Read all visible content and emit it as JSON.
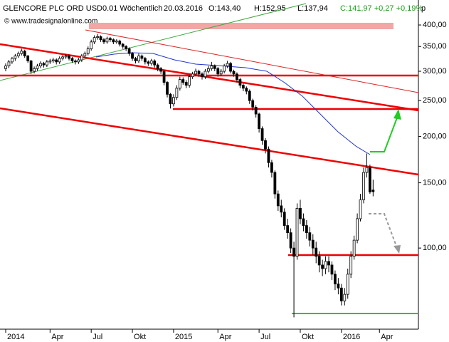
{
  "chart_data": {
    "type": "candlestick",
    "title": "GLENCORE PLC ORD USD0.01 Wöchentlich",
    "date": "20.03.2016",
    "quote": [
      "O:143,40",
      "H:152,95",
      "L:137,94"
    ],
    "change": "C:141,97 +0,27 +0,19%",
    "watermark": "© www.tradesignalonline.com",
    "unit": "p",
    "log_scale": true,
    "up_color": "#ffffff",
    "down_color": "#000000",
    "ylim": [
      60.4,
      461
    ],
    "yticks": [
      {
        "value": 400,
        "label": "400,00"
      },
      {
        "value": 350,
        "label": "350,00"
      },
      {
        "value": 300,
        "label": "300,00"
      },
      {
        "value": 250,
        "label": "250,00"
      },
      {
        "value": 200,
        "label": "200,00"
      },
      {
        "value": 150,
        "label": "150,00"
      },
      {
        "value": 100,
        "label": "100,00"
      }
    ],
    "xlim": [
      -1.8,
      130.3
    ],
    "xticks": [
      {
        "value": 0,
        "label": "2014"
      },
      {
        "value": 14,
        "label": "Apr"
      },
      {
        "value": 27,
        "label": "Jul"
      },
      {
        "value": 40,
        "label": "Okt"
      },
      {
        "value": 53,
        "label": "2015"
      },
      {
        "value": 67,
        "label": "Apr"
      },
      {
        "value": 80,
        "label": "Jul"
      },
      {
        "value": 93,
        "label": "Okt"
      },
      {
        "value": 106,
        "label": "2016"
      },
      {
        "value": 118,
        "label": "Apr"
      }
    ],
    "ohlc": [
      [
        305,
        315,
        300,
        310
      ],
      [
        310,
        322,
        306,
        318
      ],
      [
        318,
        328,
        314,
        325
      ],
      [
        325,
        334,
        320,
        330
      ],
      [
        330,
        339,
        326,
        335
      ],
      [
        335,
        345,
        331,
        340
      ],
      [
        340,
        343,
        326,
        330
      ],
      [
        330,
        332,
        316,
        320
      ],
      [
        320,
        322,
        295,
        300
      ],
      [
        300,
        309,
        296,
        305
      ],
      [
        305,
        314,
        301,
        310
      ],
      [
        310,
        319,
        306,
        315
      ],
      [
        315,
        318,
        307,
        312
      ],
      [
        312,
        322,
        308,
        318
      ],
      [
        318,
        324,
        314,
        320
      ],
      [
        320,
        326,
        316,
        322
      ],
      [
        322,
        325,
        313,
        318
      ],
      [
        318,
        329,
        314,
        325
      ],
      [
        325,
        332,
        321,
        328
      ],
      [
        328,
        334,
        324,
        330
      ],
      [
        330,
        333,
        321,
        325
      ],
      [
        325,
        328,
        316,
        320
      ],
      [
        320,
        323,
        313,
        318
      ],
      [
        318,
        326,
        314,
        322
      ],
      [
        322,
        334,
        318,
        330
      ],
      [
        330,
        339,
        326,
        335
      ],
      [
        335,
        350,
        331,
        345
      ],
      [
        345,
        365,
        341,
        360
      ],
      [
        360,
        375,
        355,
        370
      ],
      [
        370,
        378,
        365,
        372
      ],
      [
        372,
        375,
        360,
        365
      ],
      [
        365,
        369,
        355,
        360
      ],
      [
        360,
        372,
        356,
        368
      ],
      [
        368,
        371,
        360,
        365
      ],
      [
        365,
        368,
        355,
        360
      ],
      [
        360,
        366,
        356,
        362
      ],
      [
        362,
        365,
        350,
        355
      ],
      [
        355,
        358,
        345,
        350
      ],
      [
        350,
        353,
        340,
        345
      ],
      [
        345,
        348,
        330,
        335
      ],
      [
        335,
        338,
        320,
        325
      ],
      [
        325,
        328,
        315,
        320
      ],
      [
        320,
        335,
        316,
        330
      ],
      [
        330,
        333,
        320,
        325
      ],
      [
        325,
        328,
        313,
        318
      ],
      [
        318,
        321,
        310,
        315
      ],
      [
        315,
        324,
        311,
        320
      ],
      [
        320,
        323,
        307,
        312
      ],
      [
        312,
        315,
        300,
        305
      ],
      [
        305,
        308,
        295,
        300
      ],
      [
        300,
        302,
        275,
        280
      ],
      [
        280,
        282,
        255,
        260
      ],
      [
        260,
        262,
        238,
        245
      ],
      [
        245,
        260,
        241,
        255
      ],
      [
        255,
        275,
        251,
        270
      ],
      [
        270,
        290,
        266,
        285
      ],
      [
        285,
        289,
        276,
        280
      ],
      [
        280,
        284,
        270,
        275
      ],
      [
        275,
        294,
        271,
        290
      ],
      [
        290,
        299,
        286,
        295
      ],
      [
        295,
        305,
        291,
        300
      ],
      [
        300,
        303,
        290,
        295
      ],
      [
        295,
        298,
        285,
        290
      ],
      [
        290,
        304,
        286,
        300
      ],
      [
        300,
        310,
        296,
        305
      ],
      [
        305,
        318,
        301,
        310
      ],
      [
        310,
        313,
        300,
        305
      ],
      [
        305,
        308,
        290,
        295
      ],
      [
        295,
        304,
        291,
        300
      ],
      [
        300,
        314,
        296,
        310
      ],
      [
        310,
        320,
        306,
        315
      ],
      [
        315,
        318,
        296,
        300
      ],
      [
        300,
        303,
        290,
        295
      ],
      [
        295,
        298,
        280,
        285
      ],
      [
        285,
        288,
        270,
        275
      ],
      [
        275,
        278,
        265,
        270
      ],
      [
        270,
        273,
        260,
        265
      ],
      [
        265,
        268,
        245,
        250
      ],
      [
        250,
        253,
        235,
        240
      ],
      [
        240,
        243,
        225,
        230
      ],
      [
        230,
        232,
        205,
        210
      ],
      [
        210,
        213,
        190,
        195
      ],
      [
        195,
        198,
        180,
        185
      ],
      [
        185,
        188,
        165,
        170
      ],
      [
        170,
        173,
        155,
        160
      ],
      [
        160,
        162,
        136,
        140
      ],
      [
        140,
        143,
        126,
        130
      ],
      [
        130,
        135,
        121,
        125
      ],
      [
        125,
        128,
        112,
        115
      ],
      [
        115,
        120,
        106,
        110
      ],
      [
        110,
        113,
        97,
        100
      ],
      [
        100,
        104,
        65,
        95
      ],
      [
        95,
        132,
        93,
        128
      ],
      [
        128,
        135,
        116,
        120
      ],
      [
        120,
        124,
        111,
        115
      ],
      [
        115,
        119,
        106,
        110
      ],
      [
        110,
        114,
        101,
        105
      ],
      [
        105,
        109,
        96,
        100
      ],
      [
        100,
        104,
        91,
        95
      ],
      [
        95,
        98,
        86,
        90
      ],
      [
        90,
        93,
        84,
        88
      ],
      [
        88,
        95,
        85,
        92
      ],
      [
        92,
        95,
        86,
        90
      ],
      [
        90,
        92,
        82,
        85
      ],
      [
        85,
        87,
        77,
        80
      ],
      [
        80,
        83,
        75,
        78
      ],
      [
        78,
        80,
        70,
        72
      ],
      [
        72,
        78,
        70,
        75
      ],
      [
        75,
        88,
        73,
        85
      ],
      [
        85,
        98,
        83,
        95
      ],
      [
        95,
        108,
        93,
        105
      ],
      [
        105,
        124,
        103,
        120
      ],
      [
        120,
        140,
        118,
        135
      ],
      [
        135,
        165,
        132,
        160
      ],
      [
        160,
        180,
        155,
        165
      ],
      [
        165,
        168,
        140,
        141.7
      ],
      [
        143.4,
        152.95,
        137.94,
        141.97
      ]
    ]
  }
}
